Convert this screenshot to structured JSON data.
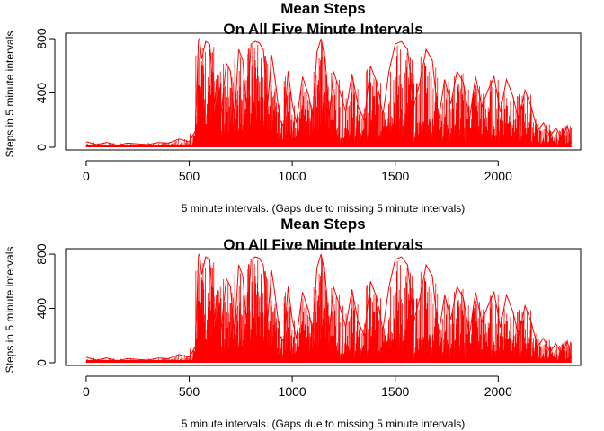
{
  "chart_data": [
    {
      "type": "line",
      "title": "Mean Steps",
      "subtitle": "On All Five Minute Intervals",
      "xlabel": "5 minute intervals. (Gaps due to missing 5 minute intervals)",
      "ylabel": "Steps in 5 minute intervals",
      "xlim": [
        -100,
        2400
      ],
      "ylim": [
        -20,
        840
      ],
      "xticks": [
        0,
        500,
        1000,
        1500,
        2000
      ],
      "xtick_labels": [
        "0",
        "500",
        "1000",
        "1500",
        "2000"
      ],
      "yticks": [
        0,
        400,
        800
      ],
      "ytick_labels": [
        "0",
        "400",
        "800"
      ],
      "grid": false,
      "legend": "none",
      "color": "#ff0000",
      "series": [
        {
          "description_points": "activity profile over 5-minute interval identifiers",
          "x": [
            0,
            50,
            100,
            150,
            200,
            250,
            300,
            350,
            400,
            450,
            500,
            530,
            545,
            550,
            560,
            580,
            600,
            620,
            640,
            650,
            680,
            700,
            720,
            740,
            760,
            780,
            800,
            820,
            840,
            860,
            880,
            900,
            920,
            940,
            960,
            980,
            1000,
            1020,
            1050,
            1080,
            1100,
            1120,
            1140,
            1160,
            1180,
            1200,
            1230,
            1260,
            1290,
            1320,
            1350,
            1380,
            1410,
            1440,
            1470,
            1500,
            1530,
            1560,
            1590,
            1620,
            1650,
            1680,
            1710,
            1740,
            1770,
            1800,
            1830,
            1860,
            1890,
            1920,
            1950,
            1980,
            2010,
            2040,
            2070,
            2100,
            2130,
            2160,
            2190,
            2220,
            2250,
            2280,
            2310,
            2335,
            2355
          ],
          "y": [
            40,
            20,
            35,
            15,
            30,
            25,
            20,
            35,
            30,
            60,
            40,
            120,
            790,
            800,
            650,
            780,
            760,
            300,
            540,
            180,
            620,
            560,
            200,
            720,
            640,
            250,
            760,
            780,
            770,
            720,
            300,
            680,
            460,
            200,
            150,
            560,
            320,
            180,
            520,
            380,
            220,
            700,
            800,
            650,
            220,
            560,
            420,
            260,
            540,
            300,
            200,
            600,
            480,
            240,
            560,
            760,
            780,
            720,
            300,
            480,
            720,
            640,
            200,
            500,
            320,
            560,
            480,
            200,
            520,
            300,
            420,
            520,
            260,
            500,
            380,
            200,
            420,
            300,
            120,
            180,
            80,
            140,
            60,
            160,
            30
          ]
        }
      ]
    },
    {
      "type": "line",
      "title": "Mean Steps",
      "subtitle": "On All Five Minute Intervals",
      "xlabel": "5 minute intervals. (Gaps due to missing 5 minute intervals)",
      "ylabel": "Steps in 5 minute intervals",
      "xlim": [
        -100,
        2400
      ],
      "ylim": [
        -20,
        840
      ],
      "xticks": [
        0,
        500,
        1000,
        1500,
        2000
      ],
      "xtick_labels": [
        "0",
        "500",
        "1000",
        "1500",
        "2000"
      ],
      "yticks": [
        0,
        400,
        800
      ],
      "ytick_labels": [
        "0",
        "400",
        "800"
      ],
      "grid": false,
      "legend": "none",
      "color": "#ff0000",
      "series": [
        {
          "description_points": "activity profile over 5-minute interval identifiers",
          "x": [
            0,
            50,
            100,
            150,
            200,
            250,
            300,
            350,
            400,
            450,
            500,
            530,
            545,
            550,
            560,
            580,
            600,
            620,
            640,
            650,
            680,
            700,
            720,
            740,
            760,
            780,
            800,
            820,
            840,
            860,
            880,
            900,
            920,
            940,
            960,
            980,
            1000,
            1020,
            1050,
            1080,
            1100,
            1120,
            1140,
            1160,
            1180,
            1200,
            1230,
            1260,
            1290,
            1320,
            1350,
            1380,
            1410,
            1440,
            1470,
            1500,
            1530,
            1560,
            1590,
            1620,
            1650,
            1680,
            1710,
            1740,
            1770,
            1800,
            1830,
            1860,
            1890,
            1920,
            1950,
            1980,
            2010,
            2040,
            2070,
            2100,
            2130,
            2160,
            2190,
            2220,
            2250,
            2280,
            2310,
            2335,
            2355
          ],
          "y": [
            40,
            20,
            35,
            15,
            30,
            25,
            20,
            35,
            30,
            60,
            40,
            120,
            790,
            800,
            650,
            780,
            760,
            300,
            540,
            180,
            620,
            560,
            200,
            720,
            640,
            250,
            760,
            780,
            770,
            720,
            300,
            680,
            460,
            200,
            150,
            560,
            320,
            180,
            520,
            380,
            220,
            700,
            800,
            650,
            220,
            560,
            420,
            260,
            540,
            300,
            200,
            600,
            480,
            240,
            560,
            760,
            780,
            720,
            300,
            480,
            720,
            640,
            200,
            500,
            320,
            560,
            480,
            200,
            520,
            300,
            420,
            520,
            260,
            500,
            380,
            200,
            420,
            300,
            120,
            180,
            80,
            140,
            60,
            160,
            30
          ]
        }
      ]
    }
  ]
}
